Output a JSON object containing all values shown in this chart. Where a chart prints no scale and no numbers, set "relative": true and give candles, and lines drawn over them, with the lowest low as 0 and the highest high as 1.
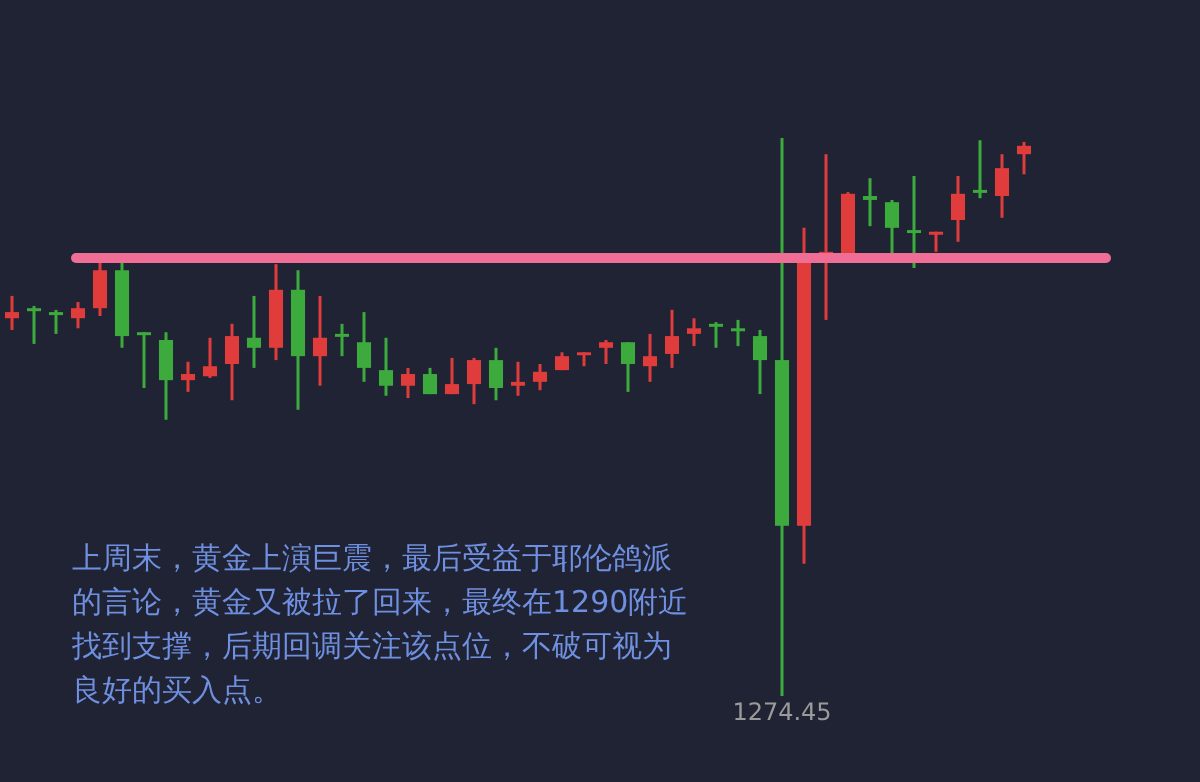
{
  "chart_data": {
    "type": "candlestick",
    "relative": true,
    "categories": [
      null,
      null,
      null,
      null,
      null,
      null,
      null,
      null,
      null,
      null,
      null,
      null,
      null,
      null,
      null,
      null,
      null,
      null,
      null,
      null,
      null,
      null,
      null,
      null,
      null,
      null,
      null,
      null,
      null,
      null,
      null,
      null,
      null,
      null,
      null,
      null,
      null,
      null,
      null,
      null,
      null,
      null,
      null,
      null,
      null,
      null,
      null
    ],
    "ohlc": [
      [
        0.677,
        0.717,
        0.656,
        0.688
      ],
      [
        0.695,
        0.699,
        0.631,
        0.692
      ],
      [
        0.688,
        0.692,
        0.649,
        0.685
      ],
      [
        0.677,
        0.706,
        0.659,
        0.695
      ],
      [
        0.695,
        0.781,
        0.681,
        0.763
      ],
      [
        0.763,
        0.778,
        0.624,
        0.645
      ],
      [
        0.652,
        0.652,
        0.552,
        0.649
      ],
      [
        0.638,
        0.652,
        0.495,
        0.566
      ],
      [
        0.566,
        0.599,
        0.545,
        0.577
      ],
      [
        0.573,
        0.642,
        0.57,
        0.591
      ],
      [
        0.595,
        0.667,
        0.53,
        0.645
      ],
      [
        0.642,
        0.717,
        0.588,
        0.624
      ],
      [
        0.624,
        0.774,
        0.602,
        0.728
      ],
      [
        0.728,
        0.763,
        0.513,
        0.609
      ],
      [
        0.609,
        0.717,
        0.556,
        0.642
      ],
      [
        0.649,
        0.667,
        0.609,
        0.645
      ],
      [
        0.634,
        0.688,
        0.563,
        0.588
      ],
      [
        0.584,
        0.642,
        0.538,
        0.556
      ],
      [
        0.556,
        0.588,
        0.534,
        0.577
      ],
      [
        0.577,
        0.588,
        0.541,
        0.541
      ],
      [
        0.541,
        0.606,
        0.541,
        0.559
      ],
      [
        0.559,
        0.606,
        0.523,
        0.602
      ],
      [
        0.602,
        0.624,
        0.53,
        0.552
      ],
      [
        0.556,
        0.599,
        0.538,
        0.563
      ],
      [
        0.563,
        0.595,
        0.548,
        0.581
      ],
      [
        0.584,
        0.616,
        0.584,
        0.609
      ],
      [
        0.613,
        0.616,
        0.591,
        0.616
      ],
      [
        0.624,
        0.638,
        0.595,
        0.634
      ],
      [
        0.634,
        0.634,
        0.545,
        0.595
      ],
      [
        0.591,
        0.649,
        0.563,
        0.609
      ],
      [
        0.613,
        0.692,
        0.588,
        0.645
      ],
      [
        0.649,
        0.677,
        0.627,
        0.659
      ],
      [
        0.667,
        0.67,
        0.624,
        0.663
      ],
      [
        0.659,
        0.674,
        0.627,
        0.656
      ],
      [
        0.645,
        0.656,
        0.541,
        0.602
      ],
      [
        0.602,
        1,
        0,
        0.305
      ],
      [
        0.305,
        0.839,
        0.237,
        0.789
      ],
      [
        0.789,
        0.971,
        0.674,
        0.796
      ],
      [
        0.789,
        0.903,
        0.789,
        0.9
      ],
      [
        0.896,
        0.928,
        0.842,
        0.889
      ],
      [
        0.885,
        0.889,
        0.789,
        0.839
      ],
      [
        0.835,
        0.932,
        0.767,
        0.832
      ],
      [
        0.828,
        0.832,
        0.796,
        0.832
      ],
      [
        0.853,
        0.932,
        0.814,
        0.9
      ],
      [
        0.907,
        0.996,
        0.892,
        0.903
      ],
      [
        0.896,
        0.971,
        0.857,
        0.946
      ],
      [
        0.971,
        0.993,
        0.935,
        0.986
      ]
    ],
    "colors": [
      "#e03c3c",
      "#3daa3d",
      "#3daa3d",
      "#e03c3c",
      "#e03c3c",
      "#3daa3d",
      "#3daa3d",
      "#3daa3d",
      "#e03c3c",
      "#e03c3c",
      "#e03c3c",
      "#3daa3d",
      "#e03c3c",
      "#3daa3d",
      "#e03c3c",
      "#3daa3d",
      "#3daa3d",
      "#3daa3d",
      "#e03c3c",
      "#3daa3d",
      "#e03c3c",
      "#e03c3c",
      "#3daa3d",
      "#e03c3c",
      "#e03c3c",
      "#e03c3c",
      "#e03c3c",
      "#e03c3c",
      "#3daa3d",
      "#e03c3c",
      "#e03c3c",
      "#e03c3c",
      "#3daa3d",
      "#3daa3d",
      "#3daa3d",
      "#3daa3d",
      "#e03c3c",
      "#e03c3c",
      "#e03c3c",
      "#3daa3d",
      "#3daa3d",
      "#3daa3d",
      "#e03c3c",
      "#e03c3c",
      "#3daa3d",
      "#e03c3c",
      "#e03c3c"
    ],
    "ref_lines": [
      {
        "axis": "y",
        "value": 0.785,
        "color": "#f06e96"
      }
    ],
    "annotations": [
      "上周末，黄金上演巨震，最后受益于耶伦鸽派的言论，黄金又被拉了回来，最终在1290附近找到支撑，后期回调关注该点位，不破可视为良好的买入点。",
      "1274.45"
    ]
  }
}
